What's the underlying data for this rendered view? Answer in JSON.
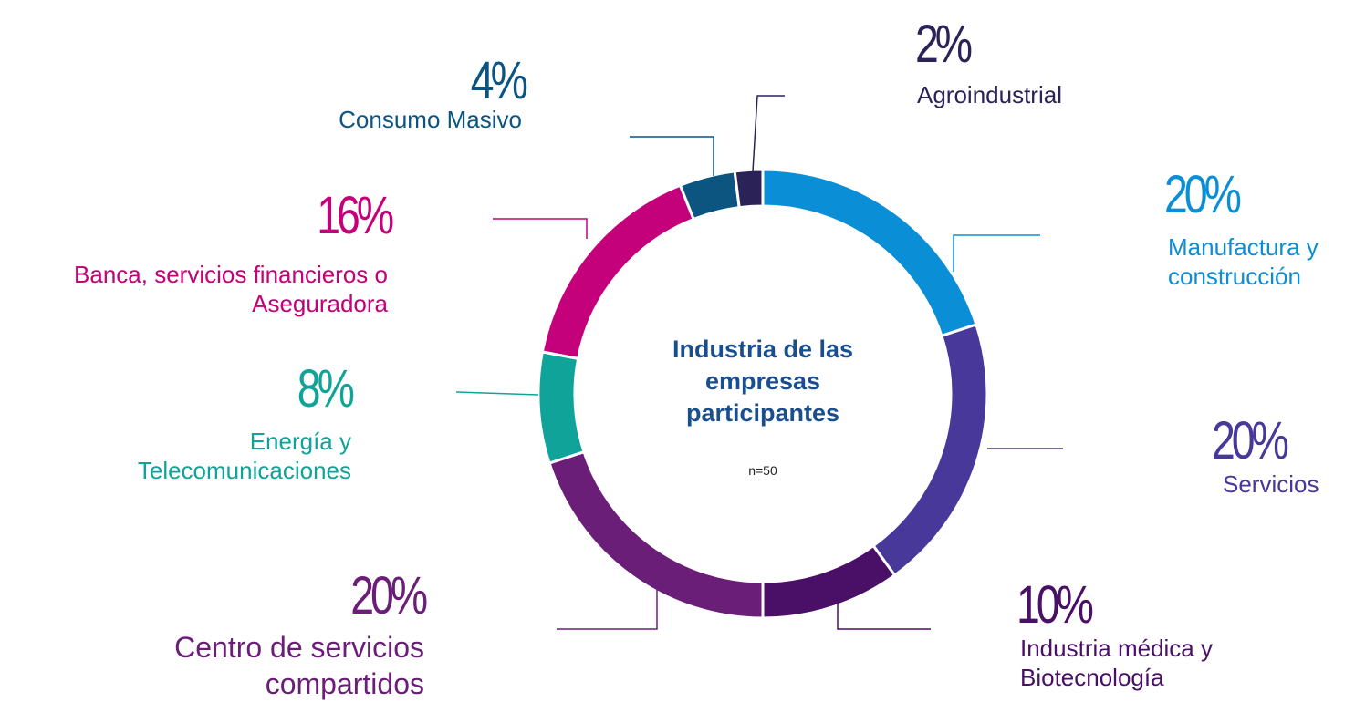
{
  "chart_data": {
    "type": "donut",
    "title": "Industria de las empresas participantes",
    "subtitle": "n=50",
    "categories": [
      "Manufactura y construcción",
      "Servicios",
      "Industria médica y Biotecnología",
      "Centro de servicios compartidos",
      "Energía y Telecomunicaciones",
      "Banca, servicios financieros o Aseguradora",
      "Consumo Masivo",
      "Agroindustrial"
    ],
    "values": [
      20,
      20,
      10,
      20,
      8,
      16,
      4,
      2
    ],
    "value_labels": [
      "20%",
      "20%",
      "10%",
      "20%",
      "8%",
      "16%",
      "4%",
      "2%"
    ],
    "colors": [
      "#0a8fd6",
      "#47389a",
      "#4a0f66",
      "#6b1e78",
      "#10a39a",
      "#c4007a",
      "#0b5580",
      "#2b2358"
    ]
  }
}
